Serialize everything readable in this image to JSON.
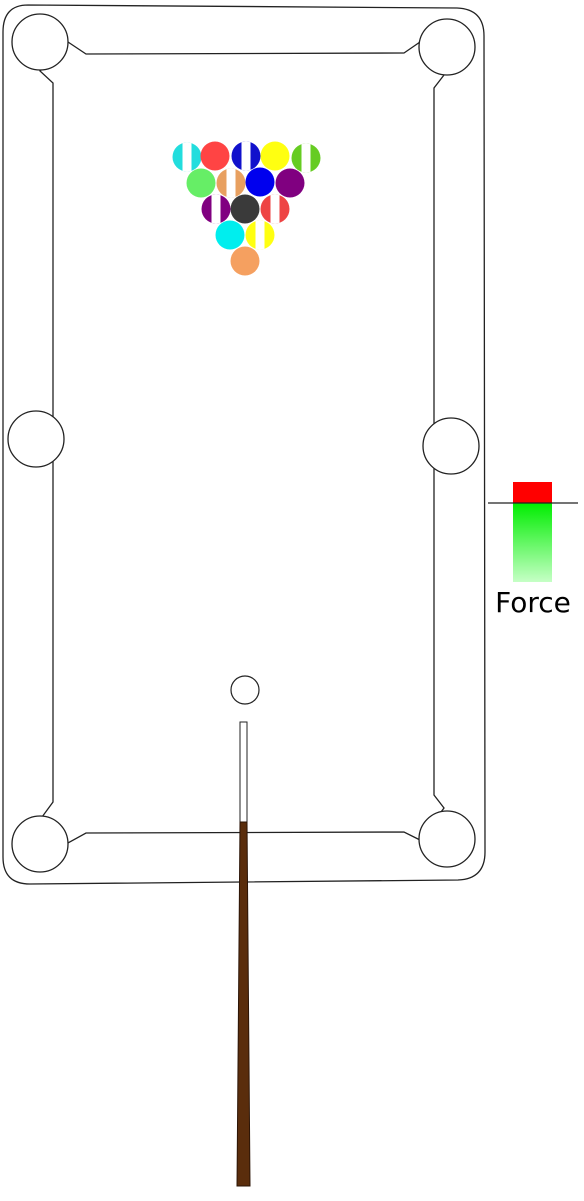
{
  "game": {
    "name": "billiards",
    "force_meter": {
      "label": "Force",
      "level": 0.85,
      "colors": {
        "max": "#ff0000",
        "fill_top": "#00ee00",
        "fill_bottom": "#c6ffc6"
      }
    },
    "table": {
      "surface_color": "#ffffff",
      "outline_color": "#222222",
      "pockets": [
        "top-left",
        "top-right",
        "middle-left",
        "middle-right",
        "bottom-left",
        "bottom-right"
      ]
    },
    "cue_ball": {
      "color": "#ffffff"
    },
    "cue": {
      "tip_color": "#ffffff",
      "shaft_color": "#5a2d0c"
    },
    "balls": [
      {
        "id": "ball-1",
        "color": "#22dddd",
        "striped": true
      },
      {
        "id": "ball-2",
        "color": "#ff4444",
        "striped": false
      },
      {
        "id": "ball-3",
        "color": "#1111cc",
        "striped": true
      },
      {
        "id": "ball-4",
        "color": "#ffff11",
        "striped": false
      },
      {
        "id": "ball-5",
        "color": "#66cc22",
        "striped": true
      },
      {
        "id": "ball-6",
        "color": "#66ee66",
        "striped": false
      },
      {
        "id": "ball-7",
        "color": "#e8a060",
        "striped": true
      },
      {
        "id": "ball-8",
        "color": "#0000ee",
        "striped": false
      },
      {
        "id": "ball-9",
        "color": "#800080",
        "striped": false
      },
      {
        "id": "ball-10",
        "color": "#800080",
        "striped": true
      },
      {
        "id": "ball-11",
        "color": "#3a3a3a",
        "striped": false
      },
      {
        "id": "ball-12",
        "color": "#ee4444",
        "striped": true
      },
      {
        "id": "ball-13",
        "color": "#00eeee",
        "striped": false
      },
      {
        "id": "ball-14",
        "color": "#ffff11",
        "striped": true
      },
      {
        "id": "ball-15",
        "color": "#f5a060",
        "striped": false
      }
    ]
  }
}
